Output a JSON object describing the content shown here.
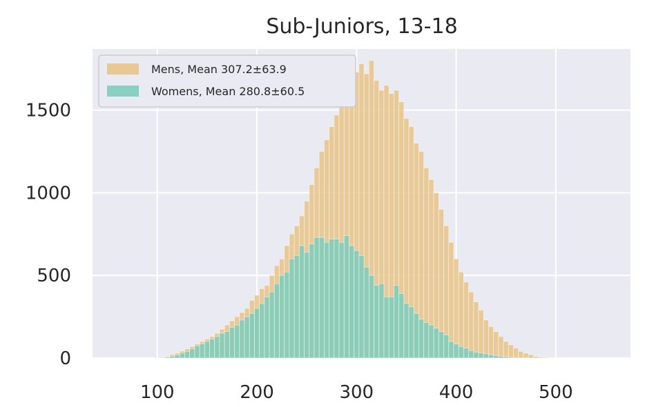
{
  "chart_data": {
    "type": "bar",
    "title": "Sub-Juniors, 13-18",
    "xlabel": "",
    "ylabel": "",
    "xlim": [
      35,
      575
    ],
    "ylim": [
      0,
      1870
    ],
    "xticks": [
      100,
      200,
      300,
      400,
      500
    ],
    "yticks": [
      0,
      500,
      1000,
      1500
    ],
    "grid": true,
    "legend_position": "top-left",
    "bin_width": 5,
    "x": [
      65,
      70,
      75,
      80,
      85,
      90,
      95,
      100,
      105,
      110,
      115,
      120,
      125,
      130,
      135,
      140,
      145,
      150,
      155,
      160,
      165,
      170,
      175,
      180,
      185,
      190,
      195,
      200,
      205,
      210,
      215,
      220,
      225,
      230,
      235,
      240,
      245,
      250,
      255,
      260,
      265,
      270,
      275,
      280,
      285,
      290,
      295,
      300,
      305,
      310,
      315,
      320,
      325,
      330,
      335,
      340,
      345,
      350,
      355,
      360,
      365,
      370,
      375,
      380,
      385,
      390,
      395,
      400,
      405,
      410,
      415,
      420,
      425,
      430,
      435,
      440,
      445,
      450,
      455,
      460,
      465,
      470,
      475,
      480,
      485,
      490,
      495,
      500,
      505,
      510,
      515,
      520,
      525,
      530,
      535,
      540,
      545,
      550,
      555
    ],
    "series": [
      {
        "name": "Mens, Mean 307.2±63.9",
        "color": "#e8c48a",
        "values": [
          0,
          0,
          0,
          0,
          0,
          0,
          0,
          2,
          4,
          10,
          22,
          30,
          42,
          55,
          70,
          85,
          100,
          115,
          130,
          150,
          175,
          200,
          225,
          250,
          275,
          300,
          350,
          380,
          420,
          440,
          500,
          560,
          600,
          680,
          750,
          800,
          860,
          950,
          1050,
          1150,
          1250,
          1320,
          1400,
          1470,
          1560,
          1630,
          1760,
          1730,
          1780,
          1720,
          1800,
          1680,
          1620,
          1650,
          1600,
          1620,
          1550,
          1450,
          1400,
          1300,
          1250,
          1150,
          1080,
          1000,
          900,
          800,
          700,
          600,
          520,
          460,
          400,
          340,
          290,
          230,
          190,
          160,
          130,
          100,
          80,
          60,
          40,
          30,
          20,
          10,
          6,
          4,
          2,
          1,
          0,
          0,
          0,
          0,
          0,
          0,
          0,
          0,
          0,
          0,
          0
        ]
      },
      {
        "name": "Womens, Mean 280.8±60.5",
        "color": "#7ccdbc",
        "values": [
          0,
          0,
          0,
          0,
          0,
          0,
          0,
          1,
          2,
          5,
          10,
          18,
          30,
          40,
          55,
          75,
          85,
          100,
          115,
          130,
          150,
          160,
          185,
          200,
          230,
          250,
          270,
          300,
          330,
          370,
          400,
          450,
          500,
          520,
          600,
          620,
          680,
          640,
          690,
          730,
          730,
          700,
          720,
          720,
          700,
          740,
          680,
          650,
          620,
          550,
          500,
          440,
          450,
          370,
          370,
          440,
          390,
          330,
          310,
          270,
          235,
          215,
          200,
          180,
          160,
          140,
          100,
          85,
          70,
          60,
          45,
          35,
          30,
          25,
          20,
          15,
          10,
          8,
          5,
          3,
          2,
          1,
          0,
          0,
          0,
          0,
          0,
          0,
          0,
          0,
          0,
          0,
          0,
          0,
          0,
          0,
          0,
          0,
          0
        ]
      }
    ]
  }
}
